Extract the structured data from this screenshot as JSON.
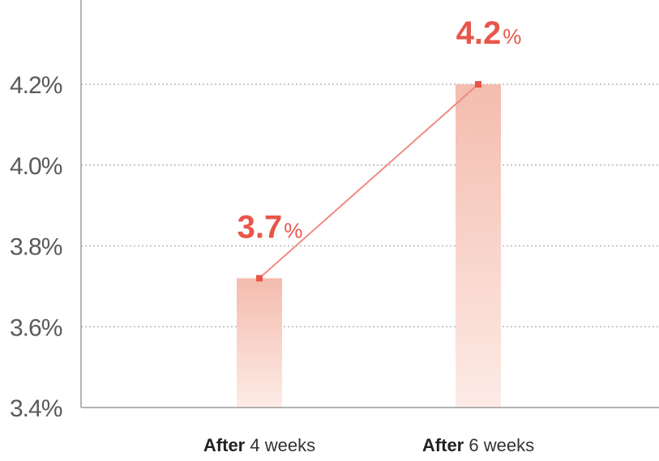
{
  "chart_data": {
    "type": "bar",
    "categories": [
      {
        "bold": "After",
        "rest": " 4 weeks"
      },
      {
        "bold": "After",
        "rest": " 6 weeks"
      }
    ],
    "values": [
      3.72,
      4.2
    ],
    "value_labels": [
      {
        "number": "3.7",
        "unit": "%"
      },
      {
        "number": "4.2",
        "unit": "%"
      }
    ],
    "y_ticks": [
      "3.4%",
      "3.6%",
      "3.8%",
      "4.0%",
      "4.2%"
    ],
    "y_tick_values": [
      3.4,
      3.6,
      3.8,
      4.0,
      4.2
    ],
    "ylim": [
      3.4,
      4.2
    ],
    "grid": true,
    "connecting_line": true,
    "colors": {
      "bar_top": "#f4bcae",
      "bar_bottom": "#fdebe6",
      "line": "#ef8a80",
      "marker": "#e8564a",
      "value_label": "#e8564a",
      "grid": "#b8b8b8",
      "axis": "#9a9a9a"
    }
  }
}
